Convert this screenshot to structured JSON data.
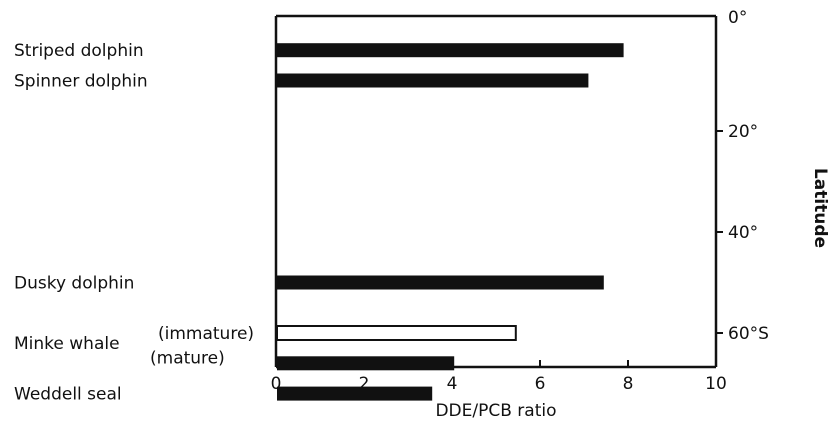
{
  "chart_data": {
    "type": "bar",
    "orientation": "horizontal",
    "title": "",
    "xlabel": "DDE/PCB ratio",
    "ylabel": "Latitude",
    "xlim": [
      0,
      10
    ],
    "x_ticks": [
      0,
      2,
      4,
      6,
      8,
      10
    ],
    "ylim": [
      0,
      80
    ],
    "latitude_ticks": [
      {
        "value": 0,
        "label": "0°"
      },
      {
        "value": 20,
        "label": "20°"
      },
      {
        "value": 40,
        "label": "40°"
      },
      {
        "value": 60,
        "label": "60°S"
      }
    ],
    "grid": false,
    "series": [
      {
        "category": "Striped dolphin",
        "qualifier": "",
        "latitude": 4,
        "value": 7.9,
        "fill": "solid"
      },
      {
        "category": "Spinner dolphin",
        "qualifier": "",
        "latitude": 10,
        "value": 7.1,
        "fill": "solid"
      },
      {
        "category": "Dusky dolphin",
        "qualifier": "",
        "latitude": 50,
        "value": 7.45,
        "fill": "solid"
      },
      {
        "category": "Minke whale",
        "qualifier": "(immature)",
        "latitude": 60,
        "value": 5.45,
        "fill": "open"
      },
      {
        "category": "",
        "qualifier": "(mature)",
        "latitude": 66,
        "value": 4.05,
        "fill": "solid"
      },
      {
        "category": "Weddell seal",
        "qualifier": "",
        "latitude": 72,
        "value": 3.55,
        "fill": "solid"
      }
    ],
    "colors": {
      "bar": "#111111",
      "open_bar_fill": "#ffffff"
    }
  }
}
